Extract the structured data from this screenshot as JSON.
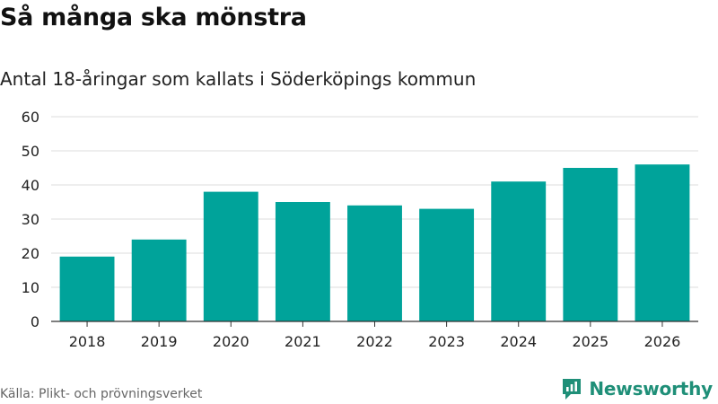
{
  "title": "Så många ska mönstra",
  "subtitle": "Antal 18-åringar som kallats i Söderköpings kommun",
  "source": "Källa: Plikt- och prövningsverket",
  "brand": {
    "name": "Newsworthy",
    "icon": "newsworthy-logo-icon",
    "color": "#1f8f78"
  },
  "chart_data": {
    "type": "bar",
    "categories": [
      "2018",
      "2019",
      "2020",
      "2021",
      "2022",
      "2023",
      "2024",
      "2025",
      "2026"
    ],
    "values": [
      19,
      24,
      38,
      35,
      34,
      33,
      41,
      45,
      46
    ],
    "title": "Så många ska mönstra",
    "subtitle": "Antal 18-åringar som kallats i Söderköpings kommun",
    "xlabel": "",
    "ylabel": "",
    "ylim": [
      0,
      60
    ],
    "yticks": [
      0,
      10,
      20,
      30,
      40,
      50,
      60
    ],
    "grid": true,
    "bar_color": "#00a39a"
  }
}
